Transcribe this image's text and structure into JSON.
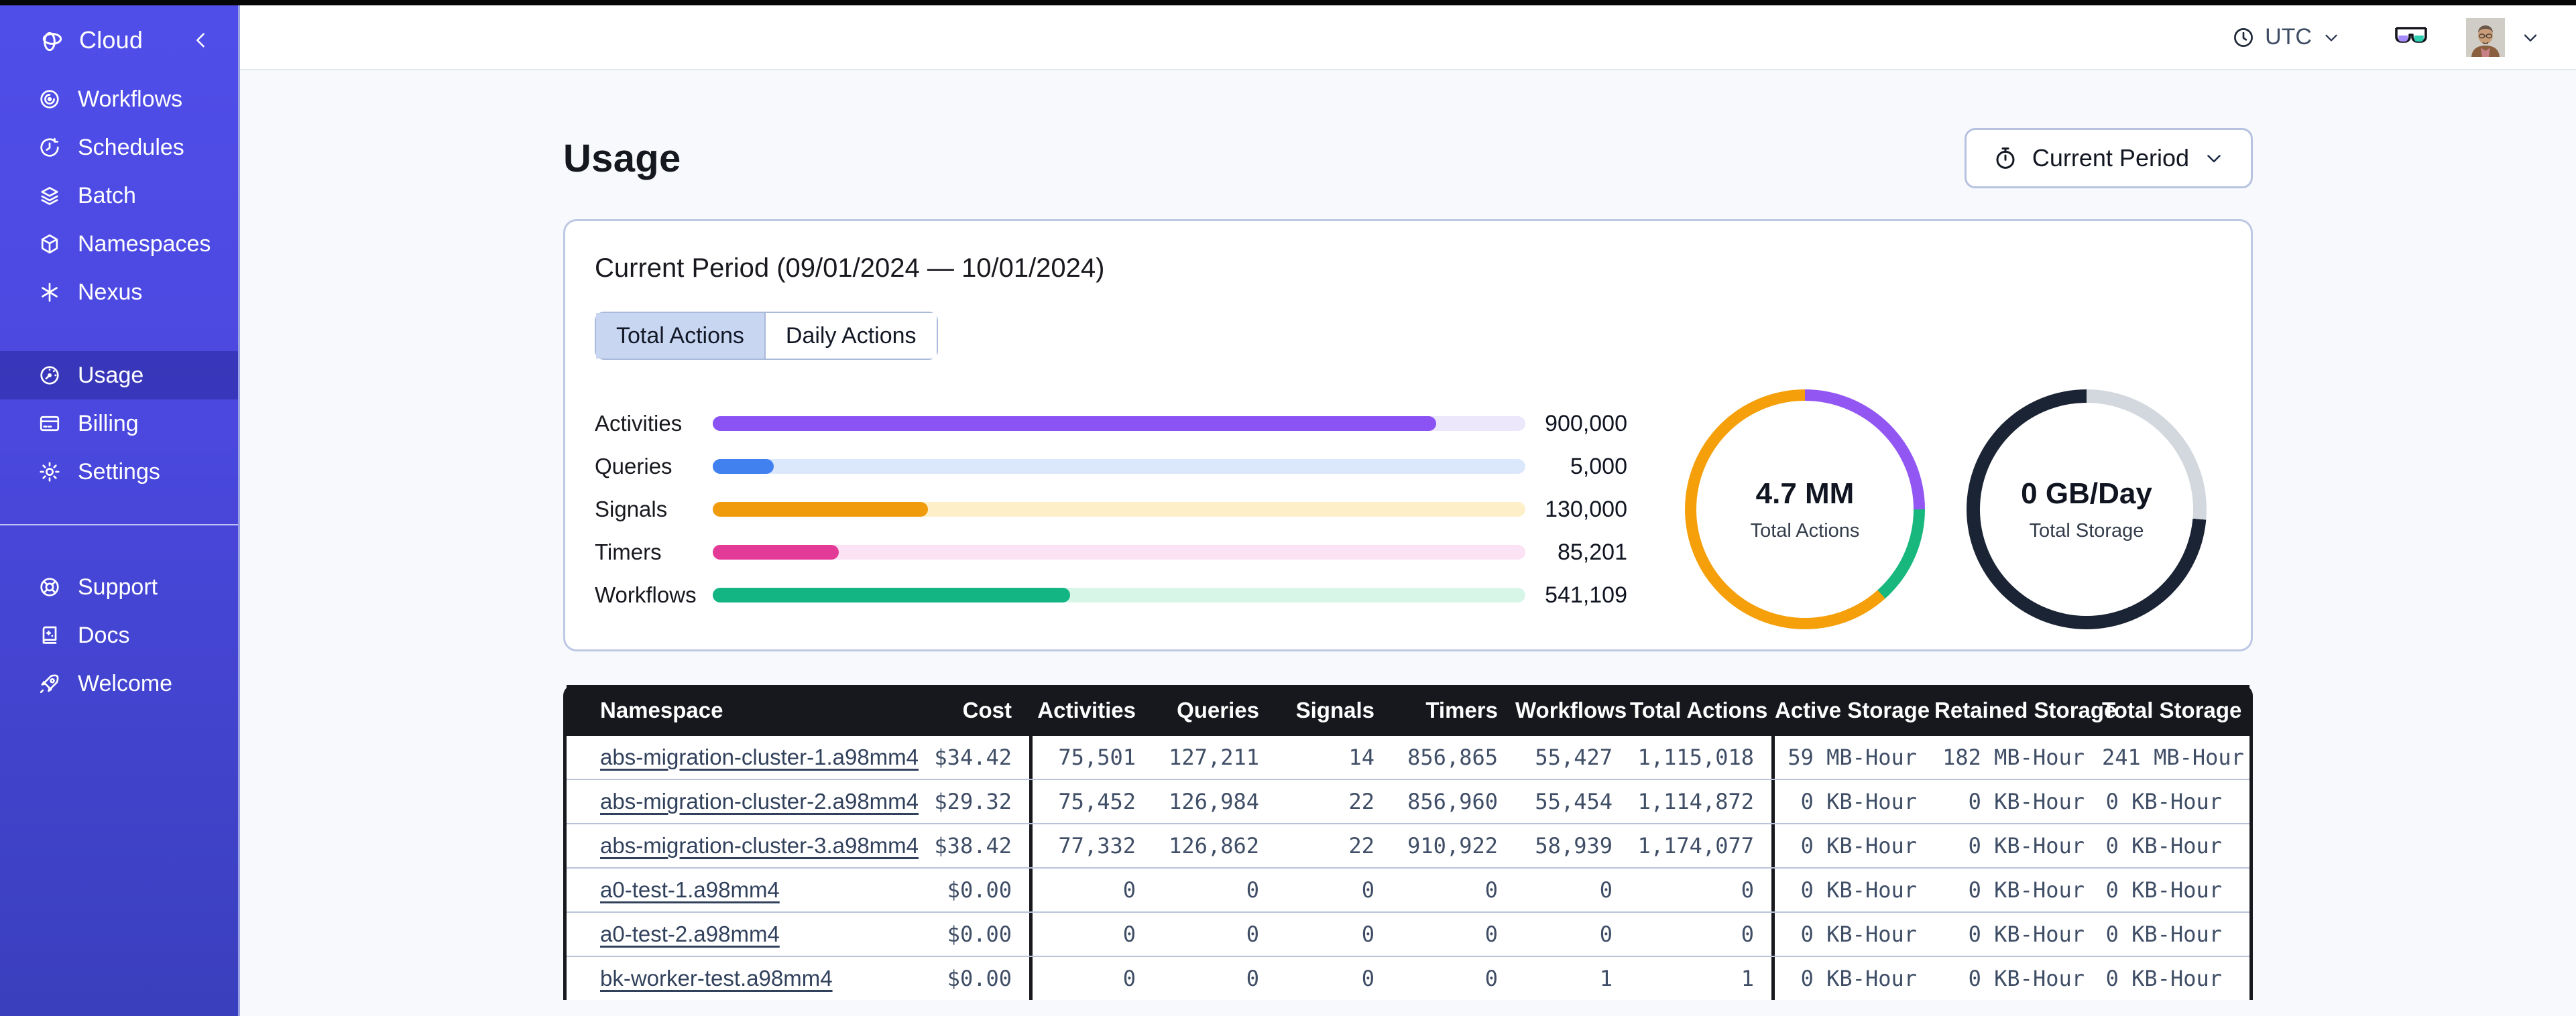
{
  "topbar": {
    "timezone": "UTC"
  },
  "sidebar": {
    "brand": "Cloud",
    "nav_primary": [
      {
        "label": "Workflows"
      },
      {
        "label": "Schedules"
      },
      {
        "label": "Batch"
      },
      {
        "label": "Namespaces"
      },
      {
        "label": "Nexus"
      }
    ],
    "nav_account": [
      {
        "label": "Usage",
        "active": true
      },
      {
        "label": "Billing",
        "active": false
      },
      {
        "label": "Settings",
        "active": false
      }
    ],
    "nav_footer": [
      {
        "label": "Support"
      },
      {
        "label": "Docs"
      },
      {
        "label": "Welcome"
      }
    ]
  },
  "page": {
    "title": "Usage",
    "period_selector": "Current Period"
  },
  "usage_card": {
    "title": "Current Period (09/01/2024 — 10/01/2024)",
    "tabs": [
      {
        "label": "Total Actions",
        "selected": true
      },
      {
        "label": "Daily Actions",
        "selected": false
      }
    ]
  },
  "chart_data": [
    {
      "type": "bar",
      "orientation": "horizontal",
      "categories": [
        "Activities",
        "Queries",
        "Signals",
        "Timers",
        "Workflows"
      ],
      "values": [
        900000,
        5000,
        130000,
        85201,
        541109
      ],
      "value_labels": [
        "900,000",
        "5,000",
        "130,000",
        "85,201",
        "541,109"
      ],
      "fill_percent": [
        89,
        7.5,
        26.5,
        15.5,
        44
      ],
      "bar_colors": [
        "#8b53f4",
        "#4080ef",
        "#f09b0c",
        "#e43a97",
        "#13b583"
      ],
      "track_colors": [
        "#ece7fb",
        "#dbe7fb",
        "#fdf0c9",
        "#fbe3f5",
        "#d8f6e8"
      ],
      "grid": false,
      "legend": false
    },
    {
      "type": "pie",
      "subtype": "donut",
      "center_label": "4.7 MM",
      "center_sublabel": "Total Actions",
      "ring_inset": "t17",
      "segments": [
        {
          "name": "activities",
          "color": "#9257f3",
          "sweep_deg": 90
        },
        {
          "name": "workflows",
          "color": "#17b77e",
          "sweep_deg": 48
        },
        {
          "name": "other-actions",
          "color": "#f5a00b",
          "sweep_deg": 222
        }
      ]
    },
    {
      "type": "pie",
      "subtype": "donut",
      "center_label": "0 GB/Day",
      "center_sublabel": "Total Storage",
      "ring_inset": "t20",
      "segments": [
        {
          "name": "remaining",
          "color": "#d3d7de",
          "sweep_deg": 95
        },
        {
          "name": "used",
          "color": "#1b2434",
          "sweep_deg": 265
        }
      ]
    }
  ],
  "table": {
    "columns": [
      "Namespace",
      "Cost",
      "Activities",
      "Queries",
      "Signals",
      "Timers",
      "Workflows",
      "Total Actions",
      "Active Storage",
      "Retained Storage",
      "Total Storage"
    ],
    "rows": [
      [
        "abs-migration-cluster-1.a98mm4",
        "$34.42",
        "75,501",
        "127,211",
        "14",
        "856,865",
        "55,427",
        "1,115,018",
        "59 MB-Hour",
        "182 MB-Hour",
        "241 MB-Hour"
      ],
      [
        "abs-migration-cluster-2.a98mm4",
        "$29.32",
        "75,452",
        "126,984",
        "22",
        "856,960",
        "55,454",
        "1,114,872",
        "0 KB-Hour",
        "0 KB-Hour",
        "0 KB-Hour"
      ],
      [
        "abs-migration-cluster-3.a98mm4",
        "$38.42",
        "77,332",
        "126,862",
        "22",
        "910,922",
        "58,939",
        "1,174,077",
        "0 KB-Hour",
        "0 KB-Hour",
        "0 KB-Hour"
      ],
      [
        "a0-test-1.a98mm4",
        "$0.00",
        "0",
        "0",
        "0",
        "0",
        "0",
        "0",
        "0 KB-Hour",
        "0 KB-Hour",
        "0 KB-Hour"
      ],
      [
        "a0-test-2.a98mm4",
        "$0.00",
        "0",
        "0",
        "0",
        "0",
        "0",
        "0",
        "0 KB-Hour",
        "0 KB-Hour",
        "0 KB-Hour"
      ],
      [
        "bk-worker-test.a98mm4",
        "$0.00",
        "0",
        "0",
        "0",
        "0",
        "1",
        "1",
        "0 KB-Hour",
        "0 KB-Hour",
        "0 KB-Hour"
      ]
    ]
  }
}
